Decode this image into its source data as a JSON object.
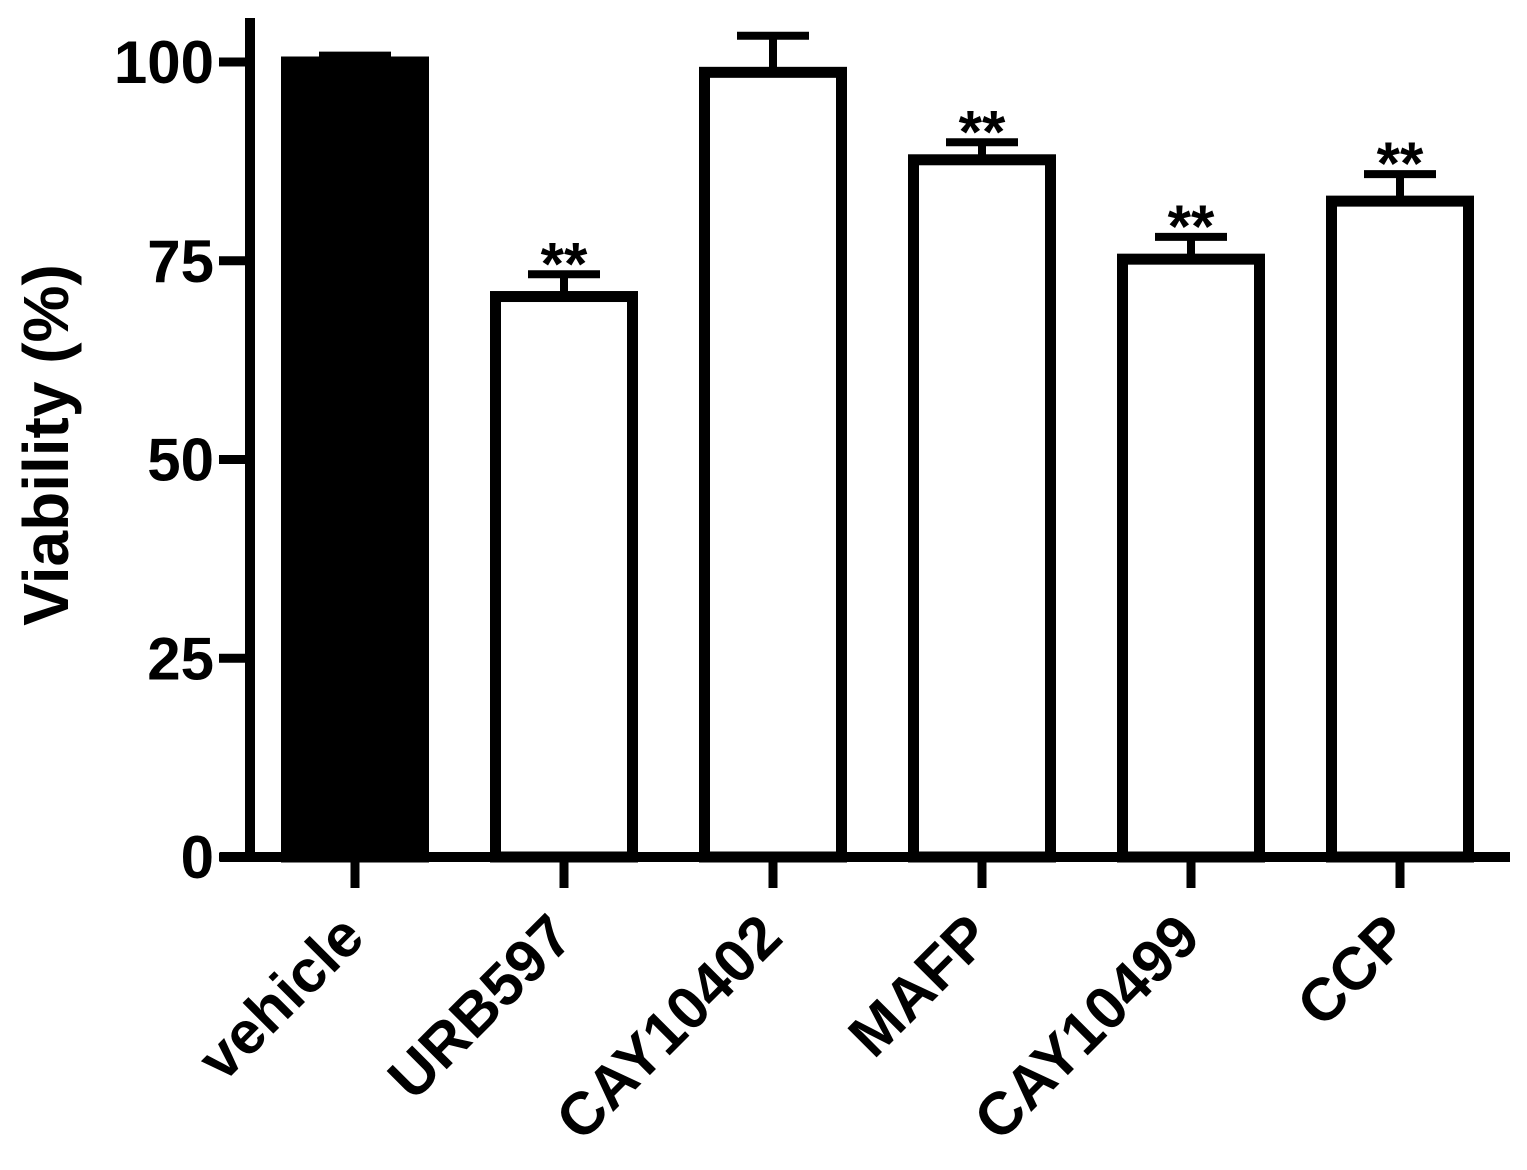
{
  "chart_data": {
    "type": "bar",
    "ylabel": "Viability (%)",
    "xlabel": "",
    "ylim": [
      0,
      100
    ],
    "yticks": [
      "0",
      "25",
      "50",
      "75",
      "100"
    ],
    "categories": [
      "vehicle",
      "URB597",
      "CAY10402",
      "MAFP",
      "CAY10499",
      "CCP"
    ],
    "values": [
      100,
      70.5,
      98.7,
      87.7,
      75.2,
      82.5
    ],
    "errors": [
      0.8,
      2.8,
      4.6,
      2.2,
      2.8,
      3.4
    ],
    "significance": [
      "",
      "**",
      "",
      "**",
      "**",
      "**"
    ],
    "bar_fills": [
      "#000000",
      "#ffffff",
      "#ffffff",
      "#ffffff",
      "#ffffff",
      "#ffffff"
    ],
    "grid": false
  }
}
